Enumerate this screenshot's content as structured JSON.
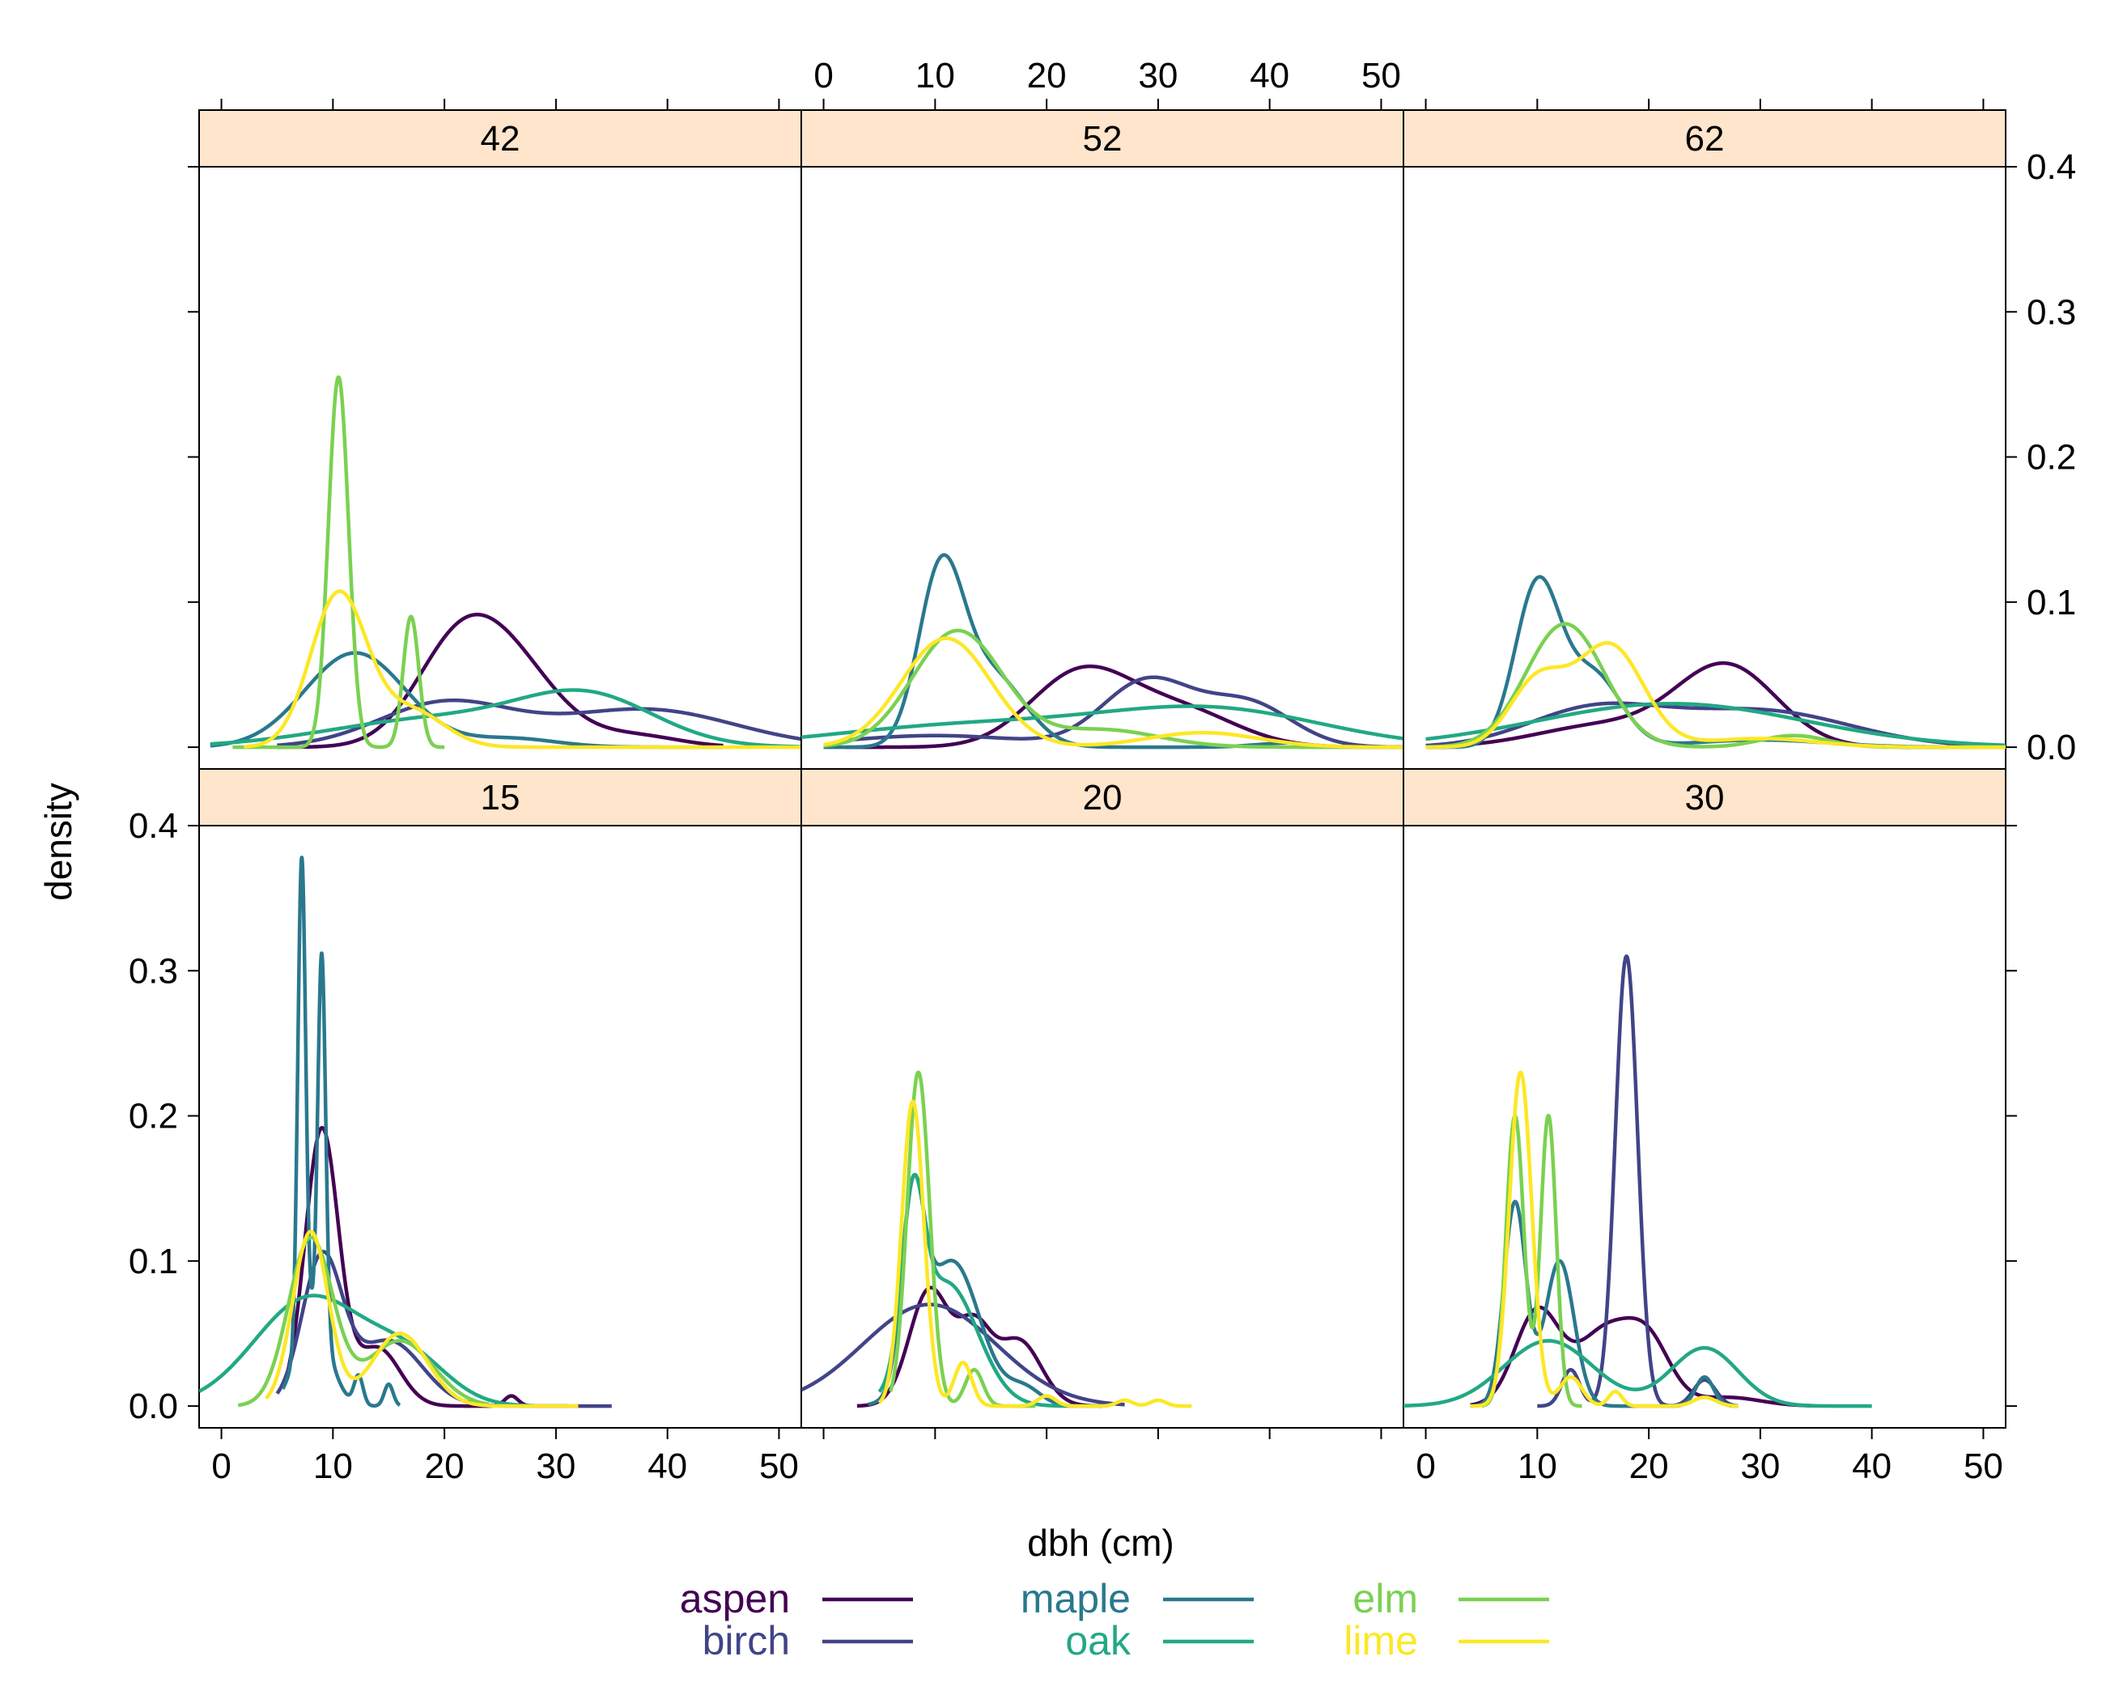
{
  "chart_data": {
    "type": "line",
    "subtype": "kernel-density (lattice densityplot)",
    "xlabel": "dbh (cm)",
    "ylabel": "density",
    "xlim": [
      -2,
      52
    ],
    "ylim": [
      -0.015,
      0.4
    ],
    "x_ticks": [
      "0",
      "10",
      "20",
      "30",
      "40",
      "50"
    ],
    "y_ticks": [
      "0.0",
      "0.1",
      "0.2",
      "0.3",
      "0.4"
    ],
    "x_tick_values": [
      0,
      10,
      20,
      30,
      40,
      50
    ],
    "y_tick_values": [
      0,
      0.1,
      0.2,
      0.3,
      0.4
    ],
    "strip_color": "#ffe5cc",
    "colors": {
      "aspen": "#440154",
      "birch": "#414487",
      "maple": "#2a788e",
      "oak": "#22a884",
      "elm": "#7ad151",
      "lime": "#fde725"
    },
    "legend": [
      {
        "name": "aspen",
        "color": "#440154"
      },
      {
        "name": "birch",
        "color": "#414487"
      },
      {
        "name": "maple",
        "color": "#2a788e"
      },
      {
        "name": "oak",
        "color": "#22a884"
      },
      {
        "name": "elm",
        "color": "#7ad151"
      },
      {
        "name": "lime",
        "color": "#fde725"
      }
    ],
    "panels": [
      {
        "label": "15",
        "series": {
          "oak": {
            "range": [
              -2,
              28
            ],
            "comps": [
              [
                8,
                5,
                0.075
              ],
              [
                17,
                3.5,
                0.028
              ]
            ]
          },
          "aspen": {
            "range": [
              5.5,
              31
            ],
            "comps": [
              [
                9,
                1.5,
                0.19
              ],
              [
                14,
                2,
                0.04
              ],
              [
                26,
                0.6,
                0.007
              ]
            ]
          },
          "birch": {
            "range": [
              5,
              35
            ],
            "comps": [
              [
                9,
                1.8,
                0.1
              ],
              [
                15,
                3,
                0.045
              ]
            ]
          },
          "maple": {
            "range": [
              5.5,
              16
            ],
            "comps": [
              [
                7.2,
                0.35,
                0.33
              ],
              [
                9,
                0.35,
                0.26
              ],
              [
                8.2,
                1.5,
                0.06
              ],
              [
                12.3,
                0.4,
                0.02
              ],
              [
                15,
                0.4,
                0.015
              ]
            ]
          },
          "elm": {
            "range": [
              1.5,
              24
            ],
            "comps": [
              [
                8,
                2,
                0.115
              ],
              [
                16,
                3,
                0.045
              ]
            ]
          },
          "lime": {
            "range": [
              4,
              32
            ],
            "comps": [
              [
                8,
                1.6,
                0.12
              ],
              [
                16,
                2.5,
                0.05
              ]
            ]
          }
        }
      },
      {
        "label": "20",
        "series": {
          "birch": {
            "range": [
              -2,
              27
            ],
            "comps": [
              [
                9.5,
                6,
                0.07
              ]
            ]
          },
          "aspen": {
            "range": [
              3,
              25
            ],
            "comps": [
              [
                9.5,
                1.8,
                0.08
              ],
              [
                13.5,
                1.5,
                0.05
              ],
              [
                17.5,
                2,
                0.045
              ]
            ]
          },
          "maple": {
            "range": [
              4,
              25
            ],
            "comps": [
              [
                8,
                1,
                0.12
              ],
              [
                11.5,
                2.5,
                0.1
              ],
              [
                18,
                1.5,
                0.012
              ]
            ]
          },
          "oak": {
            "range": [
              5,
              25
            ],
            "comps": [
              [
                8,
                1,
                0.11
              ],
              [
                11,
                2.8,
                0.085
              ]
            ]
          },
          "elm": {
            "range": [
              6,
              19
            ],
            "comps": [
              [
                8.5,
                1,
                0.23
              ],
              [
                13.5,
                0.8,
                0.025
              ]
            ]
          },
          "lime": {
            "range": [
              5,
              33
            ],
            "comps": [
              [
                8,
                1,
                0.21
              ],
              [
                12.5,
                0.8,
                0.03
              ],
              [
                20,
                0.8,
                0.007
              ],
              [
                27,
                0.7,
                0.004
              ],
              [
                30,
                0.7,
                0.004
              ]
            ]
          }
        }
      },
      {
        "label": "30",
        "series": {
          "oak": {
            "range": [
              -2,
              40
            ],
            "comps": [
              [
                11,
                4,
                0.045
              ],
              [
                25,
                3,
                0.04
              ]
            ]
          },
          "aspen": {
            "range": [
              4,
              35
            ],
            "comps": [
              [
                10,
                2,
                0.065
              ],
              [
                16,
                2.5,
                0.05
              ],
              [
                20,
                2,
                0.04
              ],
              [
                27,
                3,
                0.006
              ]
            ]
          },
          "birch": {
            "range": [
              10,
              28
            ],
            "comps": [
              [
                18,
                1,
                0.31
              ],
              [
                13,
                0.8,
                0.025
              ],
              [
                25,
                1,
                0.018
              ]
            ]
          },
          "maple": {
            "range": [
              4,
              28
            ],
            "comps": [
              [
                8,
                1,
                0.14
              ],
              [
                12,
                1.3,
                0.1
              ],
              [
                25,
                0.8,
                0.02
              ]
            ]
          },
          "elm": {
            "range": [
              5,
              14
            ],
            "comps": [
              [
                8,
                0.8,
                0.2
              ],
              [
                11,
                0.7,
                0.2
              ]
            ]
          },
          "lime": {
            "range": [
              4,
              28
            ],
            "comps": [
              [
                8.5,
                1,
                0.23
              ],
              [
                13,
                1,
                0.02
              ],
              [
                17,
                0.6,
                0.01
              ],
              [
                25,
                1,
                0.006
              ]
            ]
          }
        }
      },
      {
        "label": "42",
        "series": {
          "aspen": {
            "range": [
              5,
              45
            ],
            "comps": [
              [
                21.5,
                4,
                0.072
              ],
              [
                27,
                4,
                0.04
              ],
              [
                37,
                4,
                0.008
              ]
            ]
          },
          "birch": {
            "range": [
              5,
              52
            ],
            "comps": [
              [
                20,
                6,
                0.03
              ],
              [
                38,
                8,
                0.026
              ]
            ]
          },
          "maple": {
            "range": [
              -1,
              45
            ],
            "comps": [
              [
                12,
                4.5,
                0.065
              ],
              [
                26,
                4,
                0.006
              ]
            ]
          },
          "oak": {
            "range": [
              -1,
              52
            ],
            "comps": [
              [
                20,
                10,
                0.02
              ],
              [
                33,
                6,
                0.03
              ]
            ]
          },
          "elm": {
            "range": [
              1,
              20
            ],
            "comps": [
              [
                10.5,
                0.9,
                0.255
              ],
              [
                17,
                0.7,
                0.09
              ]
            ]
          },
          "lime": {
            "range": [
              2,
              52
            ],
            "comps": [
              [
                10.5,
                2.5,
                0.105
              ],
              [
                17,
                3,
                0.025
              ]
            ]
          }
        }
      },
      {
        "label": "52",
        "series": {
          "maple": {
            "range": [
              0,
              42
            ],
            "comps": [
              [
                10.5,
                2,
                0.115
              ],
              [
                15,
                3,
                0.05
              ],
              [
                42,
                3,
                0.003
              ]
            ]
          },
          "elm": {
            "range": [
              0,
              52
            ],
            "comps": [
              [
                12,
                4,
                0.08
              ],
              [
                25,
                5,
                0.012
              ]
            ]
          },
          "lime": {
            "range": [
              0,
              52
            ],
            "comps": [
              [
                11,
                4,
                0.075
              ],
              [
                34,
                5,
                0.01
              ]
            ]
          },
          "aspen": {
            "range": [
              2,
              52
            ],
            "comps": [
              [
                23,
                4.5,
                0.05
              ],
              [
                32,
                5,
                0.025
              ]
            ]
          },
          "birch": {
            "range": [
              2,
              52
            ],
            "comps": [
              [
                10,
                8,
                0.008
              ],
              [
                29,
                4,
                0.045
              ],
              [
                38,
                4,
                0.03
              ]
            ]
          },
          "oak": {
            "range": [
              -2,
              52
            ],
            "comps": [
              [
                13,
                12,
                0.015
              ],
              [
                35,
                10,
                0.025
              ]
            ]
          }
        }
      },
      {
        "label": "62",
        "series": {
          "maple": {
            "range": [
              0,
              52
            ],
            "comps": [
              [
                10,
                2,
                0.11
              ],
              [
                15,
                2.5,
                0.05
              ],
              [
                30,
                6,
                0.005
              ]
            ]
          },
          "elm": {
            "range": [
              0,
              52
            ],
            "comps": [
              [
                12.5,
                3.5,
                0.085
              ],
              [
                33,
                3,
                0.008
              ]
            ]
          },
          "lime": {
            "range": [
              0,
              52
            ],
            "comps": [
              [
                10,
                2.5,
                0.045
              ],
              [
                16.5,
                3,
                0.07
              ],
              [
                30,
                5,
                0.006
              ]
            ]
          },
          "aspen": {
            "range": [
              0,
              52
            ],
            "comps": [
              [
                27,
                4.5,
                0.055
              ],
              [
                16,
                6,
                0.015
              ]
            ]
          },
          "birch": {
            "range": [
              0,
              52
            ],
            "comps": [
              [
                15,
                6,
                0.025
              ],
              [
                30,
                8,
                0.025
              ]
            ]
          },
          "oak": {
            "range": [
              0,
              52
            ],
            "comps": [
              [
                22,
                12,
                0.03
              ]
            ]
          }
        }
      }
    ]
  }
}
